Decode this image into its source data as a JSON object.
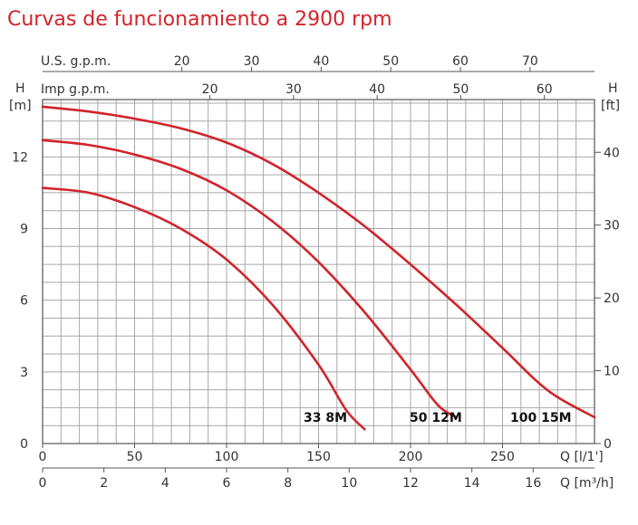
{
  "chart_data": {
    "type": "line",
    "title": "Curvas de funcionamiento a 2900 rpm",
    "x": {
      "label": "Q [l/1']",
      "range": [
        0,
        300
      ],
      "ticks": [
        "0",
        "50",
        "100",
        "150",
        "200",
        "250"
      ]
    },
    "x_secondary": [
      {
        "label": "U.S. g.p.m.",
        "ticks": [
          "20",
          "30",
          "40",
          "50",
          "60",
          "70"
        ],
        "values": [
          20,
          30,
          40,
          50,
          60,
          70
        ]
      },
      {
        "label": "Imp g.p.m.",
        "ticks": [
          "20",
          "30",
          "40",
          "50",
          "60"
        ],
        "values": [
          20,
          30,
          40,
          50,
          60
        ]
      },
      {
        "label": "Q [m³/h]",
        "ticks": [
          "0",
          "2",
          "4",
          "6",
          "8",
          "10",
          "12",
          "14",
          "16"
        ],
        "values": [
          0,
          2,
          4,
          6,
          8,
          10,
          12,
          14,
          16
        ]
      }
    ],
    "y": {
      "left_label_top": "H",
      "left_unit": "[m]",
      "range": [
        0,
        14.4
      ],
      "ticks": [
        "0",
        "3",
        "6",
        "9",
        "12"
      ]
    },
    "y_secondary": {
      "label_top": "H",
      "unit": "[ft]",
      "ticks": [
        "0",
        "10",
        "20",
        "30",
        "40"
      ],
      "values": [
        0,
        10,
        20,
        30,
        40
      ]
    },
    "grid": true,
    "series": [
      {
        "name": "33 8M",
        "color": "#d2232a",
        "points": [
          [
            0,
            10.7
          ],
          [
            25,
            10.5
          ],
          [
            50,
            9.9
          ],
          [
            75,
            9.0
          ],
          [
            100,
            7.7
          ],
          [
            125,
            5.8
          ],
          [
            150,
            3.3
          ],
          [
            165,
            1.4
          ],
          [
            175,
            0.6
          ]
        ]
      },
      {
        "name": "50 12M",
        "color": "#d2232a",
        "points": [
          [
            0,
            12.7
          ],
          [
            25,
            12.5
          ],
          [
            50,
            12.1
          ],
          [
            75,
            11.5
          ],
          [
            100,
            10.6
          ],
          [
            125,
            9.3
          ],
          [
            150,
            7.6
          ],
          [
            175,
            5.5
          ],
          [
            200,
            3.1
          ],
          [
            215,
            1.6
          ],
          [
            225,
            1.1
          ]
        ]
      },
      {
        "name": "100 15M",
        "color": "#d2232a",
        "points": [
          [
            0,
            14.1
          ],
          [
            25,
            13.9
          ],
          [
            50,
            13.6
          ],
          [
            75,
            13.2
          ],
          [
            100,
            12.6
          ],
          [
            125,
            11.7
          ],
          [
            150,
            10.5
          ],
          [
            175,
            9.1
          ],
          [
            200,
            7.5
          ],
          [
            225,
            5.8
          ],
          [
            250,
            4.0
          ],
          [
            275,
            2.2
          ],
          [
            300,
            1.1
          ]
        ]
      }
    ]
  }
}
